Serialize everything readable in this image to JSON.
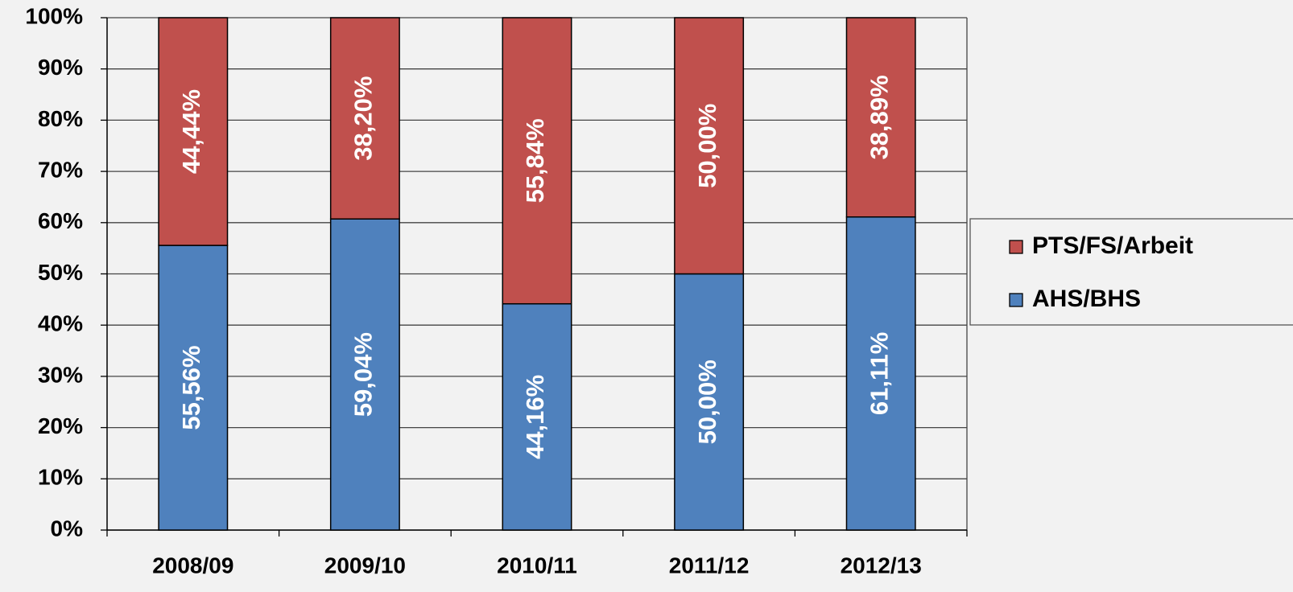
{
  "chart_data": {
    "type": "bar",
    "stack": "percent",
    "categories": [
      "2008/09",
      "2009/10",
      "2010/11",
      "2011/12",
      "2012/13"
    ],
    "series": [
      {
        "name": "AHS/BHS",
        "color": "#4f81bd",
        "values": [
          55.56,
          59.04,
          44.16,
          50.0,
          61.11
        ],
        "value_labels": [
          "55,56%",
          "59,04%",
          "44,16%",
          "50,00%",
          "61,11%"
        ]
      },
      {
        "name": "PTS/FS/Arbeit",
        "color": "#c0504d",
        "values": [
          44.44,
          38.2,
          55.84,
          50.0,
          38.89
        ],
        "value_labels": [
          "44,44%",
          "38,20%",
          "55,84%",
          "50,00%",
          "38,89%"
        ]
      }
    ],
    "ylim": [
      0,
      100
    ],
    "yticks": [
      {
        "value": 0,
        "label": "0%"
      },
      {
        "value": 10,
        "label": "10%"
      },
      {
        "value": 20,
        "label": "20%"
      },
      {
        "value": 30,
        "label": "30%"
      },
      {
        "value": 40,
        "label": "40%"
      },
      {
        "value": 50,
        "label": "50%"
      },
      {
        "value": 60,
        "label": "60%"
      },
      {
        "value": 70,
        "label": "70%"
      },
      {
        "value": 80,
        "label": "80%"
      },
      {
        "value": 90,
        "label": "90%"
      },
      {
        "value": 100,
        "label": "100%"
      }
    ],
    "grid": true,
    "legend": "right"
  }
}
